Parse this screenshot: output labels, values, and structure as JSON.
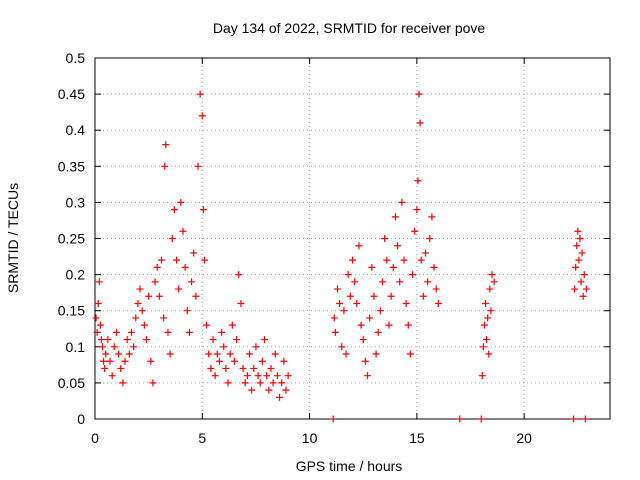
{
  "chart_data": {
    "type": "scatter",
    "title": "Day 134 of 2022, SRMTID for receiver pove",
    "xlabel": "GPS time / hours",
    "ylabel": "SRMTID / TECUs",
    "xlim": [
      0,
      24
    ],
    "ylim": [
      0,
      0.5
    ],
    "xticks": [
      0,
      5,
      10,
      15,
      20
    ],
    "yticks": [
      0,
      0.05,
      0.1,
      0.15,
      0.2,
      0.25,
      0.3,
      0.35,
      0.4,
      0.45,
      0.5
    ],
    "grid": true,
    "marker": "plus",
    "color": "#ff0000",
    "series": [
      {
        "name": "SRMTID",
        "points": [
          [
            0.05,
            0.14
          ],
          [
            0.1,
            0.12
          ],
          [
            0.15,
            0.16
          ],
          [
            0.2,
            0.19
          ],
          [
            0.25,
            0.13
          ],
          [
            0.3,
            0.11
          ],
          [
            0.35,
            0.1
          ],
          [
            0.4,
            0.08
          ],
          [
            0.45,
            0.07
          ],
          [
            0.5,
            0.09
          ],
          [
            0.6,
            0.11
          ],
          [
            0.7,
            0.08
          ],
          [
            0.8,
            0.06
          ],
          [
            0.9,
            0.1
          ],
          [
            1.0,
            0.12
          ],
          [
            1.1,
            0.09
          ],
          [
            1.2,
            0.07
          ],
          [
            1.3,
            0.05
          ],
          [
            1.4,
            0.08
          ],
          [
            1.5,
            0.11
          ],
          [
            1.6,
            0.09
          ],
          [
            1.7,
            0.12
          ],
          [
            1.8,
            0.1
          ],
          [
            1.9,
            0.14
          ],
          [
            2.0,
            0.16
          ],
          [
            2.1,
            0.18
          ],
          [
            2.2,
            0.15
          ],
          [
            2.3,
            0.13
          ],
          [
            2.4,
            0.11
          ],
          [
            2.5,
            0.17
          ],
          [
            2.6,
            0.08
          ],
          [
            2.7,
            0.05
          ],
          [
            2.8,
            0.19
          ],
          [
            2.9,
            0.21
          ],
          [
            3.0,
            0.17
          ],
          [
            3.1,
            0.22
          ],
          [
            3.2,
            0.14
          ],
          [
            3.25,
            0.35
          ],
          [
            3.3,
            0.38
          ],
          [
            3.4,
            0.12
          ],
          [
            3.5,
            0.09
          ],
          [
            3.6,
            0.25
          ],
          [
            3.7,
            0.29
          ],
          [
            3.8,
            0.22
          ],
          [
            3.9,
            0.18
          ],
          [
            4.0,
            0.3
          ],
          [
            4.1,
            0.26
          ],
          [
            4.2,
            0.21
          ],
          [
            4.3,
            0.15
          ],
          [
            4.4,
            0.12
          ],
          [
            4.5,
            0.19
          ],
          [
            4.6,
            0.23
          ],
          [
            4.7,
            0.17
          ],
          [
            4.8,
            0.35
          ],
          [
            4.9,
            0.45
          ],
          [
            5.0,
            0.42
          ],
          [
            5.05,
            0.29
          ],
          [
            5.1,
            0.22
          ],
          [
            5.2,
            0.13
          ],
          [
            5.3,
            0.09
          ],
          [
            5.4,
            0.07
          ],
          [
            5.5,
            0.11
          ],
          [
            5.6,
            0.06
          ],
          [
            5.7,
            0.09
          ],
          [
            5.8,
            0.08
          ],
          [
            5.9,
            0.12
          ],
          [
            6.0,
            0.1
          ],
          [
            6.1,
            0.07
          ],
          [
            6.2,
            0.05
          ],
          [
            6.3,
            0.09
          ],
          [
            6.4,
            0.13
          ],
          [
            6.5,
            0.08
          ],
          [
            6.6,
            0.11
          ],
          [
            6.7,
            0.2
          ],
          [
            6.8,
            0.16
          ],
          [
            6.9,
            0.07
          ],
          [
            7.0,
            0.05
          ],
          [
            7.1,
            0.06
          ],
          [
            7.2,
            0.09
          ],
          [
            7.3,
            0.04
          ],
          [
            7.4,
            0.07
          ],
          [
            7.5,
            0.1
          ],
          [
            7.6,
            0.06
          ],
          [
            7.7,
            0.05
          ],
          [
            7.8,
            0.08
          ],
          [
            7.9,
            0.11
          ],
          [
            8.0,
            0.06
          ],
          [
            8.1,
            0.04
          ],
          [
            8.2,
            0.07
          ],
          [
            8.3,
            0.05
          ],
          [
            8.4,
            0.09
          ],
          [
            8.5,
            0.06
          ],
          [
            8.6,
            0.03
          ],
          [
            8.7,
            0.05
          ],
          [
            8.8,
            0.08
          ],
          [
            8.9,
            0.04
          ],
          [
            9.0,
            0.06
          ],
          [
            11.1,
            0.0
          ],
          [
            11.15,
            0.14
          ],
          [
            11.2,
            0.12
          ],
          [
            11.3,
            0.18
          ],
          [
            11.4,
            0.16
          ],
          [
            11.5,
            0.1
          ],
          [
            11.6,
            0.15
          ],
          [
            11.7,
            0.09
          ],
          [
            11.8,
            0.2
          ],
          [
            11.9,
            0.17
          ],
          [
            12.0,
            0.22
          ],
          [
            12.1,
            0.19
          ],
          [
            12.2,
            0.16
          ],
          [
            12.3,
            0.24
          ],
          [
            12.4,
            0.13
          ],
          [
            12.5,
            0.11
          ],
          [
            12.6,
            0.08
          ],
          [
            12.7,
            0.06
          ],
          [
            12.8,
            0.14
          ],
          [
            12.9,
            0.21
          ],
          [
            13.0,
            0.17
          ],
          [
            13.1,
            0.09
          ],
          [
            13.2,
            0.12
          ],
          [
            13.3,
            0.15
          ],
          [
            13.4,
            0.19
          ],
          [
            13.5,
            0.25
          ],
          [
            13.6,
            0.22
          ],
          [
            13.7,
            0.13
          ],
          [
            13.8,
            0.17
          ],
          [
            13.9,
            0.21
          ],
          [
            14.0,
            0.28
          ],
          [
            14.1,
            0.24
          ],
          [
            14.2,
            0.19
          ],
          [
            14.3,
            0.3
          ],
          [
            14.4,
            0.22
          ],
          [
            14.5,
            0.16
          ],
          [
            14.6,
            0.13
          ],
          [
            14.7,
            0.09
          ],
          [
            14.8,
            0.2
          ],
          [
            14.9,
            0.26
          ],
          [
            15.0,
            0.29
          ],
          [
            15.05,
            0.33
          ],
          [
            15.1,
            0.45
          ],
          [
            15.15,
            0.41
          ],
          [
            15.2,
            0.22
          ],
          [
            15.3,
            0.17
          ],
          [
            15.4,
            0.23
          ],
          [
            15.5,
            0.19
          ],
          [
            15.6,
            0.25
          ],
          [
            15.7,
            0.28
          ],
          [
            15.8,
            0.21
          ],
          [
            15.9,
            0.18
          ],
          [
            16.0,
            0.16
          ],
          [
            17.0,
            0.0
          ],
          [
            18.0,
            0.0
          ],
          [
            18.05,
            0.06
          ],
          [
            18.1,
            0.1
          ],
          [
            18.15,
            0.13
          ],
          [
            18.2,
            0.16
          ],
          [
            18.25,
            0.11
          ],
          [
            18.3,
            0.14
          ],
          [
            18.35,
            0.09
          ],
          [
            18.4,
            0.18
          ],
          [
            18.45,
            0.15
          ],
          [
            18.5,
            0.2
          ],
          [
            18.6,
            0.19
          ],
          [
            22.3,
            0.0
          ],
          [
            22.35,
            0.18
          ],
          [
            22.4,
            0.21
          ],
          [
            22.45,
            0.24
          ],
          [
            22.5,
            0.26
          ],
          [
            22.55,
            0.22
          ],
          [
            22.6,
            0.25
          ],
          [
            22.65,
            0.19
          ],
          [
            22.7,
            0.23
          ],
          [
            22.75,
            0.17
          ],
          [
            22.8,
            0.2
          ],
          [
            22.85,
            0.0
          ],
          [
            22.9,
            0.18
          ]
        ]
      }
    ]
  }
}
